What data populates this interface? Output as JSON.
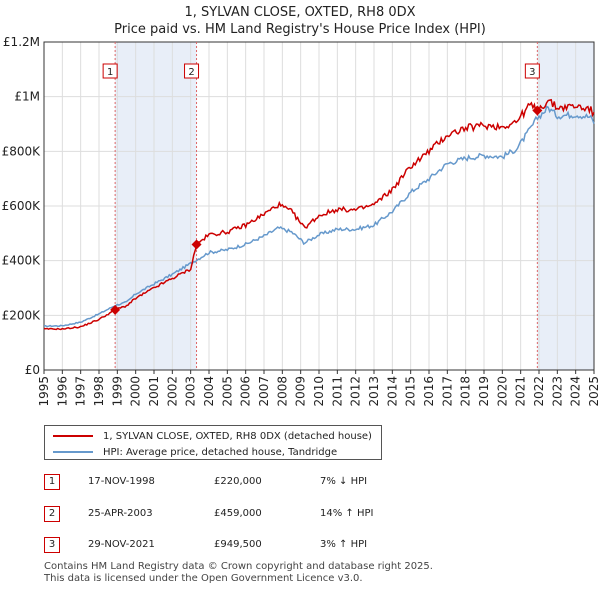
{
  "title_line1": "1, SYLVAN CLOSE, OXTED, RH8 0DX",
  "title_line2": "Price paid vs. HM Land Registry's House Price Index (HPI)",
  "legend": {
    "red_label": "1, SYLVAN CLOSE, OXTED, RH8 0DX (detached house)",
    "blue_label": "HPI: Average price, detached house, Tandridge"
  },
  "transactions": [
    {
      "num": "1",
      "date": "17-NOV-1998",
      "price": "£220,000",
      "hpi": "7% ↓ HPI"
    },
    {
      "num": "2",
      "date": "25-APR-2003",
      "price": "£459,000",
      "hpi": "14% ↑ HPI"
    },
    {
      "num": "3",
      "date": "29-NOV-2021",
      "price": "£949,500",
      "hpi": "3% ↑ HPI"
    }
  ],
  "footer": {
    "line1": "Contains HM Land Registry data © Crown copyright and database right 2025.",
    "line2": "This data is licensed under the Open Government Licence v3.0."
  },
  "colors": {
    "property": "#cc0000",
    "hpi": "#6699cc",
    "shade": "#e8eef8",
    "grid": "#dddddd",
    "marker_line": "#dd6666"
  },
  "chart_data": {
    "type": "line",
    "xlim": [
      1995,
      2025
    ],
    "ylim": [
      0,
      1200000
    ],
    "yticks": [
      0,
      200000,
      400000,
      600000,
      800000,
      1000000,
      1200000
    ],
    "ytick_labels": [
      "£0",
      "£200K",
      "£400K",
      "£600K",
      "£800K",
      "£1M",
      "£1.2M"
    ],
    "xticks": [
      "1995",
      "1996",
      "1997",
      "1998",
      "1999",
      "2000",
      "2001",
      "2002",
      "2003",
      "2004",
      "2005",
      "2006",
      "2007",
      "2008",
      "2009",
      "2010",
      "2011",
      "2012",
      "2013",
      "2014",
      "2015",
      "2016",
      "2017",
      "2018",
      "2019",
      "2020",
      "2021",
      "2022",
      "2023",
      "2024",
      "2025"
    ],
    "shaded_ranges": [
      [
        1998.88,
        2003.32
      ],
      [
        2021.91,
        2025.0
      ]
    ],
    "sales": [
      {
        "label": "1",
        "x": 1998.88,
        "y": 220000
      },
      {
        "label": "2",
        "x": 2003.32,
        "y": 459000
      },
      {
        "label": "3",
        "x": 2021.91,
        "y": 949500
      }
    ],
    "series": [
      {
        "name": "1, SYLVAN CLOSE, OXTED, RH8 0DX (detached house)",
        "x": [
          1995,
          1996,
          1997,
          1998,
          1998.88,
          1999.5,
          2000,
          2001,
          2002,
          2003,
          2003.32,
          2004,
          2005,
          2006,
          2007,
          2007.8,
          2008.5,
          2009.2,
          2010,
          2011,
          2012,
          2013,
          2014,
          2015,
          2016,
          2017,
          2018,
          2019,
          2020,
          2020.8,
          2021.5,
          2021.91,
          2022.5,
          2023,
          2024,
          2024.8,
          2025
        ],
        "values": [
          150000,
          150000,
          158000,
          185000,
          220000,
          235000,
          262000,
          300000,
          335000,
          370000,
          459000,
          495000,
          505000,
          530000,
          570000,
          605000,
          580000,
          520000,
          565000,
          588000,
          585000,
          605000,
          660000,
          745000,
          800000,
          860000,
          885000,
          895000,
          890000,
          910000,
          970000,
          949500,
          985000,
          960000,
          965000,
          955000,
          930000
        ]
      },
      {
        "name": "HPI: Average price, detached house, Tandridge",
        "x": [
          1995,
          1996,
          1997,
          1998,
          1998.88,
          1999.5,
          2000,
          2001,
          2002,
          2003,
          2003.32,
          2004,
          2005,
          2006,
          2007,
          2007.8,
          2008.5,
          2009.2,
          2010,
          2011,
          2012,
          2013,
          2014,
          2015,
          2016,
          2017,
          2018,
          2019,
          2020,
          2020.8,
          2021.5,
          2021.91,
          2022.5,
          2023,
          2024,
          2024.8,
          2025
        ],
        "values": [
          160000,
          162000,
          175000,
          205000,
          236000,
          248000,
          278000,
          315000,
          350000,
          390000,
          403000,
          430000,
          440000,
          460000,
          490000,
          520000,
          505000,
          465000,
          495000,
          515000,
          515000,
          530000,
          580000,
          650000,
          700000,
          755000,
          775000,
          785000,
          780000,
          810000,
          880000,
          922000,
          960000,
          930000,
          935000,
          925000,
          905000
        ]
      }
    ]
  }
}
